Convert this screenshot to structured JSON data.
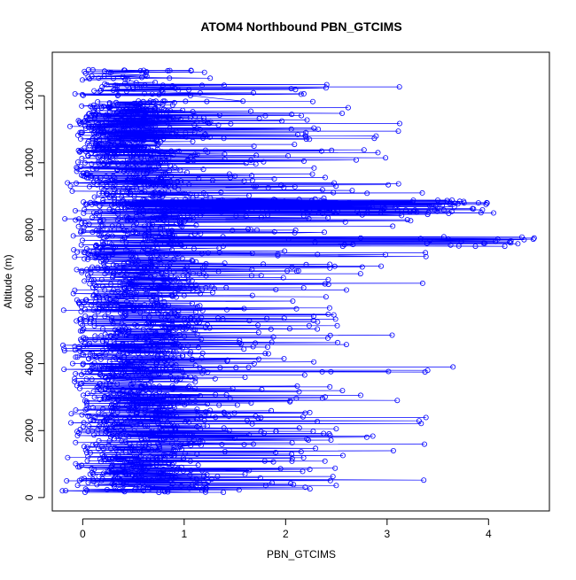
{
  "chart_data": {
    "type": "scatter",
    "title": "ATOM4 Northbound PBN_GTCIMS",
    "xlabel": "PBN_GTCIMS",
    "ylabel": "Altitude (m)",
    "xlim": [
      -0.3,
      4.6
    ],
    "ylim": [
      -400,
      13300
    ],
    "x_ticks": [
      0,
      1,
      2,
      3,
      4
    ],
    "y_ticks": [
      0,
      2000,
      4000,
      6000,
      8000,
      10000,
      12000
    ],
    "series_color": "#0000ff",
    "markers": "open-circle",
    "connected": true,
    "grid": false,
    "legend": "none",
    "representative_points": [
      {
        "x": 0.6,
        "y": 200
      },
      {
        "x": 0.35,
        "y": 600
      },
      {
        "x": 1.6,
        "y": 700
      },
      {
        "x": 2.05,
        "y": 420
      },
      {
        "x": 0.9,
        "y": 1500
      },
      {
        "x": 2.8,
        "y": 1800
      },
      {
        "x": 1.2,
        "y": 2300
      },
      {
        "x": 3.1,
        "y": 2900
      },
      {
        "x": 0.7,
        "y": 3300
      },
      {
        "x": 3.4,
        "y": 3800
      },
      {
        "x": 3.65,
        "y": 3900
      },
      {
        "x": 1.8,
        "y": 4300
      },
      {
        "x": 3.05,
        "y": 4850
      },
      {
        "x": 0.5,
        "y": 5600
      },
      {
        "x": 2.6,
        "y": 6200
      },
      {
        "x": 3.35,
        "y": 6400
      },
      {
        "x": 1.4,
        "y": 7000
      },
      {
        "x": 3.95,
        "y": 7600
      },
      {
        "x": 4.35,
        "y": 7700
      },
      {
        "x": 4.45,
        "y": 7750
      },
      {
        "x": 3.2,
        "y": 8300
      },
      {
        "x": 3.9,
        "y": 8800
      },
      {
        "x": 4.05,
        "y": 8500
      },
      {
        "x": 1.5,
        "y": 9600
      },
      {
        "x": 1.4,
        "y": 10100
      },
      {
        "x": 2.2,
        "y": 10900
      },
      {
        "x": 1.8,
        "y": 11400
      },
      {
        "x": 0.6,
        "y": 11000
      },
      {
        "x": 1.2,
        "y": 12700
      },
      {
        "x": 0.5,
        "y": 12200
      },
      {
        "x": -0.15,
        "y": 9400
      },
      {
        "x": -0.1,
        "y": 4000
      },
      {
        "x": -0.2,
        "y": 200
      }
    ]
  }
}
